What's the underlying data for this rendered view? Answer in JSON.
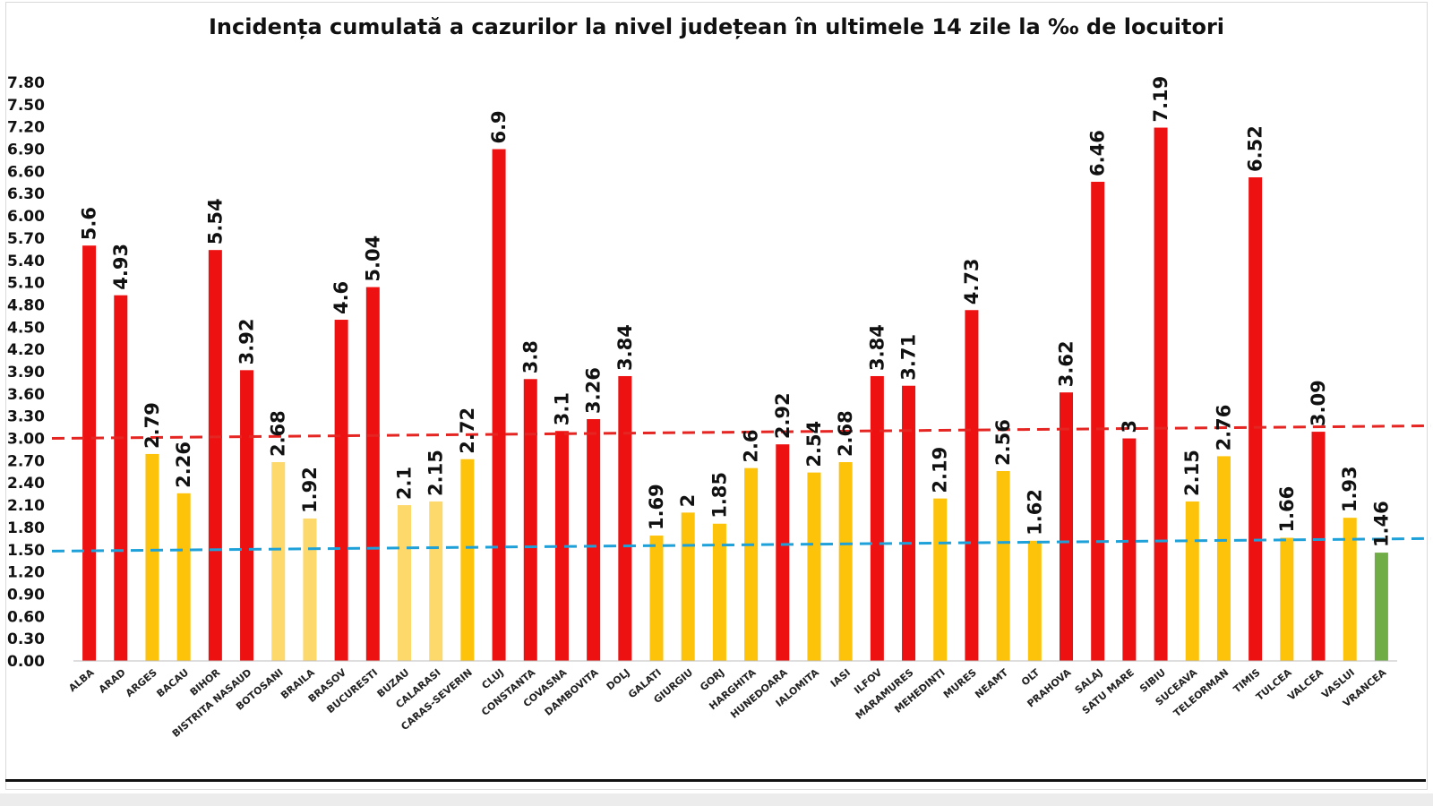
{
  "chart_data": {
    "type": "bar",
    "title": "Incidența cumulată a cazurilor la nivel județean în ultimele 14 zile la ‰ de locuitori",
    "xlabel": "",
    "ylabel": "",
    "ylim": [
      0,
      7.8
    ],
    "yticks": [
      "0.00",
      "0.30",
      "0.60",
      "0.90",
      "1.20",
      "1.50",
      "1.80",
      "2.10",
      "2.40",
      "2.70",
      "3.00",
      "3.30",
      "3.60",
      "3.90",
      "4.20",
      "4.50",
      "4.80",
      "5.10",
      "5.40",
      "5.70",
      "6.00",
      "6.30",
      "6.60",
      "6.90",
      "7.20",
      "7.50",
      "7.80"
    ],
    "grid": false,
    "legend": "none",
    "categories": [
      "ALBA",
      "ARAD",
      "ARGES",
      "BACAU",
      "BIHOR",
      "BISTRITA NASAUD",
      "BOTOSANI",
      "BRAILA",
      "BRASOV",
      "BUCURESTI",
      "BUZAU",
      "CALARASI",
      "CARAS-SEVERIN",
      "CLUJ",
      "CONSTANTA",
      "COVASNA",
      "DAMBOVITA",
      "DOLJ",
      "GALATI",
      "GIURGIU",
      "GORJ",
      "HARGHITA",
      "HUNEDOARA",
      "IALOMITA",
      "IASI",
      "ILFOV",
      "MARAMURES",
      "MEHEDINTI",
      "MURES",
      "NEAMT",
      "OLT",
      "PRAHOVA",
      "SALAJ",
      "SATU MARE",
      "SIBIU",
      "SUCEAVA",
      "TELEORMAN",
      "TIMIS",
      "TULCEA",
      "VALCEA",
      "VASLUI",
      "VRANCEA"
    ],
    "values": [
      5.6,
      4.93,
      2.79,
      2.26,
      5.54,
      3.92,
      2.68,
      1.92,
      4.6,
      5.04,
      2.1,
      2.15,
      2.72,
      6.9,
      3.8,
      3.1,
      3.26,
      3.84,
      1.69,
      2,
      1.85,
      2.6,
      2.92,
      2.54,
      2.68,
      3.84,
      3.71,
      2.19,
      4.73,
      2.56,
      1.62,
      3.62,
      6.46,
      3,
      7.19,
      2.15,
      2.76,
      6.52,
      1.66,
      3.09,
      1.93,
      1.46
    ],
    "value_labels": [
      "5.6",
      "4.93",
      "2.79",
      "2.26",
      "5.54",
      "3.92",
      "2.68",
      "1.92",
      "4.6",
      "5.04",
      "2.1",
      "2.15",
      "2.72",
      "6.9",
      "3.8",
      "3.1",
      "3.26",
      "3.84",
      "1.69",
      "2",
      "1.85",
      "2.6",
      "2.92",
      "2.54",
      "2.68",
      "3.84",
      "3.71",
      "2.19",
      "4.73",
      "2.56",
      "1.62",
      "3.62",
      "6.46",
      "3",
      "7.19",
      "2.15",
      "2.76",
      "6.52",
      "1.66",
      "3.09",
      "1.93",
      "1.46"
    ],
    "bar_colors": [
      "#ee1111",
      "#ee1111",
      "#fdc20a",
      "#fdc20a",
      "#ee1111",
      "#ee1111",
      "#fdd86a",
      "#fdd86a",
      "#ee1111",
      "#ee1111",
      "#fdd86a",
      "#fdd86a",
      "#fdc20a",
      "#ee1111",
      "#ee1111",
      "#ee1111",
      "#ee1111",
      "#ee1111",
      "#fdc20a",
      "#fdc20a",
      "#fdc20a",
      "#fdc20a",
      "#ee1111",
      "#fdc20a",
      "#fdc20a",
      "#ee1111",
      "#ee1111",
      "#fdc20a",
      "#ee1111",
      "#fdc20a",
      "#fdc20a",
      "#ee1111",
      "#ee1111",
      "#ee1111",
      "#ee1111",
      "#fdc20a",
      "#fdc20a",
      "#ee1111",
      "#fdc20a",
      "#ee1111",
      "#fdc20a",
      "#70ad47"
    ],
    "reference_lines": [
      {
        "from": 3.0,
        "to": 3.17,
        "color": "#e52521"
      },
      {
        "from": 1.48,
        "to": 1.65,
        "color": "#1ea1d9"
      }
    ]
  }
}
